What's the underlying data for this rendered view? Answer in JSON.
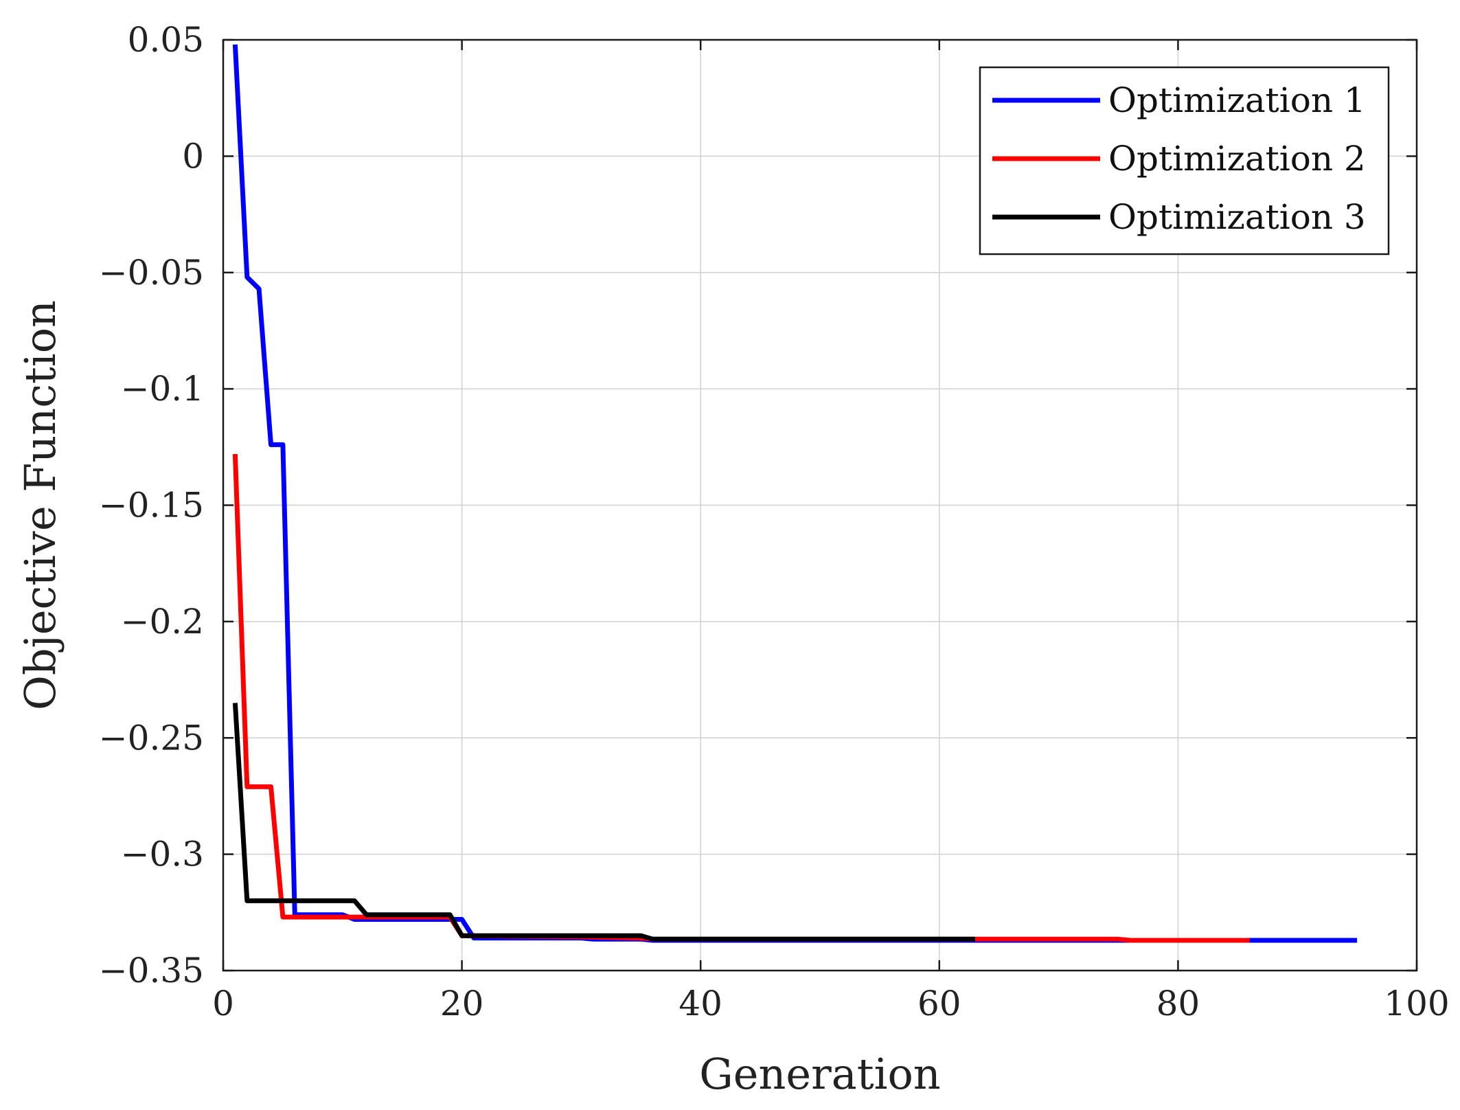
{
  "chart_data": {
    "type": "line",
    "title": "",
    "xlabel": "Generation",
    "ylabel": "Objective Function",
    "xlim": [
      0,
      100
    ],
    "ylim": [
      -0.35,
      0.05
    ],
    "xticks": [
      0,
      20,
      40,
      60,
      80,
      100
    ],
    "xtick_labels": [
      "0",
      "20",
      "40",
      "60",
      "80",
      "100"
    ],
    "yticks": [
      0.05,
      0,
      -0.05,
      -0.1,
      -0.15,
      -0.2,
      -0.25,
      -0.3,
      -0.35
    ],
    "ytick_labels": [
      "0.05",
      "0",
      "−0.05",
      "−0.1",
      "−0.15",
      "−0.2",
      "−0.25",
      "−0.3",
      "−0.35"
    ],
    "grid": true,
    "legend_position": "top-right",
    "series": [
      {
        "name": "Optimization 1",
        "color": "#0000ff",
        "points": [
          [
            1,
            0.048
          ],
          [
            2,
            -0.052
          ],
          [
            3,
            -0.057
          ],
          [
            4,
            -0.124
          ],
          [
            5,
            -0.124
          ],
          [
            6,
            -0.326
          ],
          [
            10,
            -0.326
          ],
          [
            11,
            -0.328
          ],
          [
            19,
            -0.328
          ],
          [
            20,
            -0.328
          ],
          [
            21,
            -0.336
          ],
          [
            30,
            -0.336
          ],
          [
            31,
            -0.3365
          ],
          [
            35,
            -0.3365
          ],
          [
            36,
            -0.337
          ],
          [
            95,
            -0.337
          ]
        ]
      },
      {
        "name": "Optimization 2",
        "color": "#ff0000",
        "points": [
          [
            1,
            -0.128
          ],
          [
            2,
            -0.271
          ],
          [
            4,
            -0.271
          ],
          [
            5,
            -0.327
          ],
          [
            11,
            -0.327
          ],
          [
            12,
            -0.327
          ],
          [
            19,
            -0.327
          ],
          [
            20,
            -0.335
          ],
          [
            30,
            -0.3355
          ],
          [
            35,
            -0.336
          ],
          [
            36,
            -0.3365
          ],
          [
            75,
            -0.3365
          ],
          [
            76,
            -0.337
          ],
          [
            86,
            -0.337
          ]
        ]
      },
      {
        "name": "Optimization 3",
        "color": "#000000",
        "points": [
          [
            1,
            -0.235
          ],
          [
            2,
            -0.32
          ],
          [
            11,
            -0.32
          ],
          [
            12,
            -0.326
          ],
          [
            19,
            -0.326
          ],
          [
            20,
            -0.335
          ],
          [
            34,
            -0.335
          ],
          [
            35,
            -0.335
          ],
          [
            36,
            -0.3365
          ],
          [
            63,
            -0.3365
          ]
        ]
      }
    ]
  }
}
